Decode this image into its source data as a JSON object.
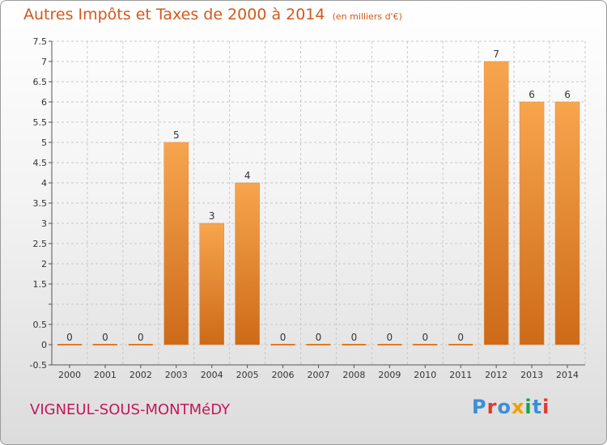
{
  "header": {
    "title": "Autres Impôts et Taxes de 2000 à 2014",
    "unit": "(en milliers d'€)"
  },
  "commune": "VIGNEUL-SOUS-MONTMéDY",
  "logo": {
    "text": "Proxiti",
    "letter_colors": [
      "#3a8fd9",
      "#e2382e",
      "#3a8fd9",
      "#f0a000",
      "#1aa14a",
      "#3a8fd9",
      "#e2382e"
    ]
  },
  "colors": {
    "bar_top": "#f7a54e",
    "bar_bottom": "#cd6a18",
    "title": "#d2581c",
    "commune": "#c2185b",
    "grid": "#c8c8c8"
  },
  "chart_data": {
    "type": "bar",
    "title": "Autres Impôts et Taxes de 2000 à 2014",
    "subtitle": "(en milliers d'€)",
    "categories": [
      "2000",
      "2001",
      "2002",
      "2003",
      "2004",
      "2005",
      "2006",
      "2007",
      "2008",
      "2009",
      "2010",
      "2011",
      "2012",
      "2013",
      "2014"
    ],
    "values": [
      0,
      0,
      0,
      5,
      3,
      4,
      0,
      0,
      0,
      0,
      0,
      0,
      7,
      6,
      6
    ],
    "data_labels": [
      "0",
      "0",
      "0",
      "5",
      "3",
      "4",
      "0",
      "0",
      "0",
      "0",
      "0",
      "0",
      "7",
      "6",
      "6"
    ],
    "ylim": [
      -0.5,
      7.5
    ],
    "yticks": [
      -0.5,
      0,
      0.5,
      1,
      1.5,
      2,
      2.5,
      3,
      3.5,
      4,
      4.5,
      5,
      5.5,
      6,
      6.5,
      7,
      7.5
    ],
    "ytick_labels": [
      "-0.5",
      "0",
      "0.5",
      "",
      "1.5",
      "2",
      "2.5",
      "3",
      "3.5",
      "4",
      "4.5",
      "5",
      "5.5",
      "6",
      "6.5",
      "7",
      "7.5"
    ],
    "grid": true,
    "legend": "none"
  }
}
